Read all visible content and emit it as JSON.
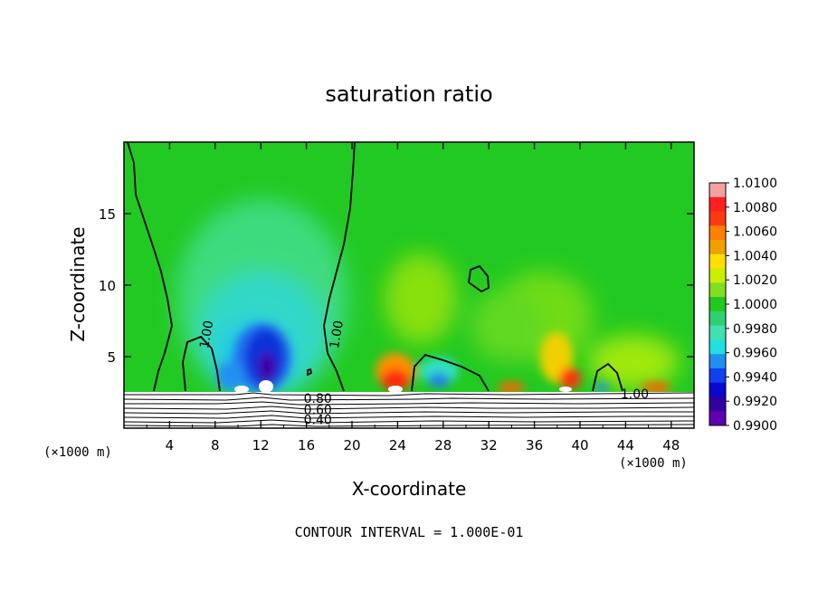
{
  "chart_data": {
    "type": "heatmap",
    "title": "saturation ratio",
    "xlabel": "X-coordinate",
    "ylabel": "Z-coordinate",
    "x_unit_left": "(×1000 m)",
    "x_unit_right": "(×1000 m)",
    "footer": "CONTOUR INTERVAL = 1.000E-01",
    "xlim": [
      0,
      50
    ],
    "ylim": [
      0,
      20
    ],
    "x_ticks": [
      4,
      8,
      12,
      16,
      20,
      24,
      28,
      32,
      36,
      40,
      44,
      48
    ],
    "y_ticks": [
      5,
      10,
      15
    ],
    "grid": false,
    "colorbar": {
      "placement": "right",
      "ticks": [
        "1.0100",
        "1.0080",
        "1.0060",
        "1.0040",
        "1.0020",
        "1.0000",
        "0.9980",
        "0.9960",
        "0.9940",
        "0.9920",
        "0.9900"
      ],
      "colors": [
        "#f4a0a0",
        "#ff2020",
        "#ff3a10",
        "#ff8000",
        "#f0a000",
        "#ffe000",
        "#c8f000",
        "#80e020",
        "#20c820",
        "#30d070",
        "#40e0b0",
        "#20e0e0",
        "#2090f0",
        "#1040f0",
        "#0808d0",
        "#3000a0",
        "#6000b0"
      ]
    },
    "contour_labels": [
      {
        "text": "1.00",
        "x": 7.6,
        "z": 6.5
      },
      {
        "text": "1.00",
        "x": 19.0,
        "z": 6.5
      },
      {
        "text": "1.00",
        "x": 44.8,
        "z": 2.4
      },
      {
        "text": "0.80",
        "x": 17.0,
        "z": 2.1
      },
      {
        "text": "0.60",
        "x": 17.0,
        "z": 1.3
      },
      {
        "text": "0.40",
        "x": 17.0,
        "z": 0.6
      }
    ]
  }
}
